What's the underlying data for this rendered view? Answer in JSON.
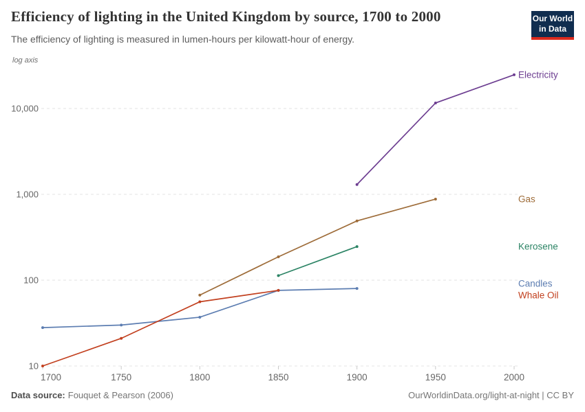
{
  "header": {
    "title": "Efficiency of lighting in the United Kingdom by source, 1700 to 2000",
    "subtitle": "The efficiency of lighting is measured in lumen-hours per kilowatt-hour of energy."
  },
  "logo": {
    "line1": "Our World",
    "line2": "in Data",
    "bg_color": "#102d4f",
    "accent_color": "#dc2a1d"
  },
  "chart_data": {
    "type": "line",
    "title": "Efficiency of lighting in the United Kingdom by source, 1700 to 2000",
    "xlabel": "",
    "ylabel": "lumen-hours per kilowatt-hour of energy",
    "scale_note": "log axis",
    "y_scale": "log",
    "xlim": [
      1700,
      2000
    ],
    "ylim": [
      10,
      30000
    ],
    "x_ticks": [
      1700,
      1750,
      1800,
      1850,
      1900,
      1950,
      2000
    ],
    "y_ticks": [
      10,
      100,
      1000,
      10000
    ],
    "y_tick_labels": [
      "10",
      "100",
      "1,000",
      "10,000"
    ],
    "grid": "horizontal-dashed",
    "legend_position": "right-edge-labels",
    "grid_color": "#e3e3e3",
    "tick_label_color": "#666666",
    "series": [
      {
        "name": "Electricity",
        "color": "#6d3e91",
        "points": [
          [
            1900,
            1300
          ],
          [
            1950,
            11600
          ],
          [
            2000,
            24700
          ]
        ]
      },
      {
        "name": "Gas",
        "color": "#9e6c39",
        "points": [
          [
            1800,
            67
          ],
          [
            1850,
            187
          ],
          [
            1900,
            490
          ],
          [
            1950,
            880
          ]
        ]
      },
      {
        "name": "Kerosene",
        "color": "#2c8465",
        "points": [
          [
            1850,
            113
          ],
          [
            1900,
            246
          ]
        ]
      },
      {
        "name": "Candles",
        "color": "#5c7db1",
        "points": [
          [
            1700,
            28
          ],
          [
            1750,
            30
          ],
          [
            1800,
            37
          ],
          [
            1850,
            76
          ],
          [
            1900,
            80
          ]
        ]
      },
      {
        "name": "Whale Oil",
        "color": "#c2401f",
        "points": [
          [
            1700,
            10
          ],
          [
            1750,
            21
          ],
          [
            1800,
            56
          ],
          [
            1850,
            76
          ]
        ]
      }
    ]
  },
  "footer": {
    "source_label": "Data source:",
    "source_value": "Fouquet & Pearson (2006)",
    "credit": "OurWorldinData.org/light-at-night | CC BY"
  }
}
